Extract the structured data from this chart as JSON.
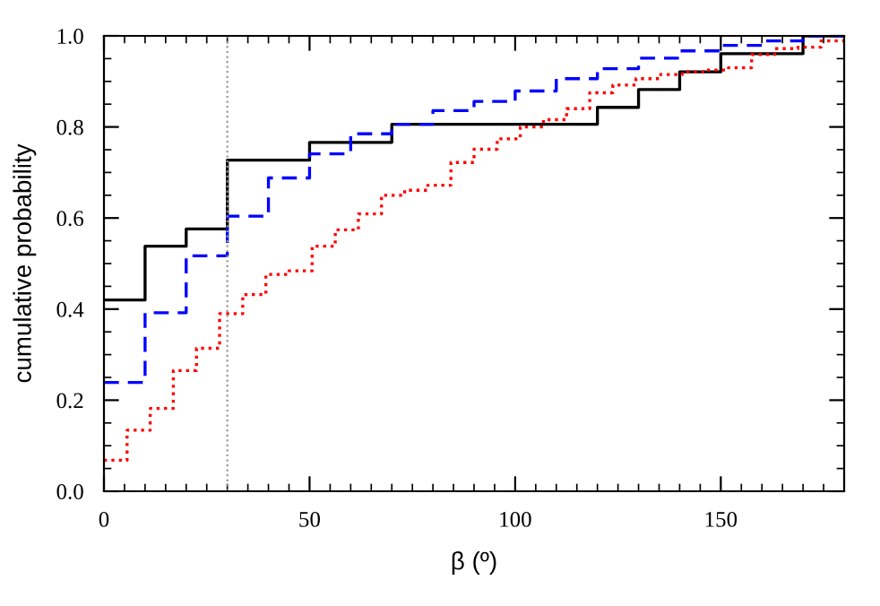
{
  "chart_data": {
    "type": "step",
    "xlabel": "β (º)",
    "ylabel": "cumulative probability",
    "xlim": [
      0,
      180
    ],
    "ylim": [
      0,
      1
    ],
    "xticks": [
      0,
      50,
      100,
      150
    ],
    "yticks": [
      {
        "value": 0,
        "label": "0.0"
      },
      {
        "value": 0.2,
        "label": "0.2"
      },
      {
        "value": 0.4,
        "label": "0.4"
      },
      {
        "value": 0.6,
        "label": "0.6"
      },
      {
        "value": 0.8,
        "label": "0.8"
      },
      {
        "value": 1,
        "label": "1.0"
      }
    ],
    "grid": false,
    "legend": false,
    "ref_lines": [
      {
        "axis": "x",
        "value": 30,
        "color": "#999999",
        "line_style": "dotted"
      }
    ],
    "series": [
      {
        "color": "#000000",
        "line_style": "solid",
        "x": [
          0,
          10,
          20,
          30,
          50,
          70,
          120,
          130,
          140,
          150,
          170,
          180
        ],
        "values": [
          0.42,
          0.538,
          0.576,
          0.727,
          0.766,
          0.806,
          0.843,
          0.882,
          0.921,
          0.961,
          1.0,
          1.0
        ]
      },
      {
        "color": "#0000ff",
        "line_style": "dashed",
        "x": [
          0,
          10,
          20,
          30,
          40,
          50,
          60,
          70,
          80,
          90,
          100,
          110,
          120,
          130,
          140,
          150,
          160,
          170,
          180
        ],
        "values": [
          0.239,
          0.392,
          0.517,
          0.604,
          0.688,
          0.741,
          0.785,
          0.806,
          0.836,
          0.856,
          0.879,
          0.906,
          0.928,
          0.951,
          0.967,
          0.979,
          0.989,
          1.0,
          1.0
        ]
      },
      {
        "color": "#ff0000",
        "line_style": "dotted",
        "x": [
          0,
          5.625,
          11.25,
          16.875,
          22.5,
          28.125,
          33.75,
          39.375,
          45,
          50.625,
          56.25,
          61.875,
          67.5,
          73.125,
          78.75,
          84.375,
          90,
          95.625,
          101.25,
          106.875,
          112.5,
          118.125,
          123.75,
          129.375,
          135,
          140.625,
          146.25,
          151.875,
          157.5,
          163.125,
          168.75,
          174.375,
          180
        ],
        "values": [
          0.068,
          0.134,
          0.182,
          0.265,
          0.314,
          0.39,
          0.432,
          0.476,
          0.484,
          0.538,
          0.574,
          0.609,
          0.65,
          0.661,
          0.672,
          0.722,
          0.751,
          0.774,
          0.8,
          0.816,
          0.84,
          0.875,
          0.892,
          0.906,
          0.915,
          0.921,
          0.925,
          0.93,
          0.959,
          0.972,
          0.975,
          0.989,
          0.989
        ]
      }
    ]
  }
}
